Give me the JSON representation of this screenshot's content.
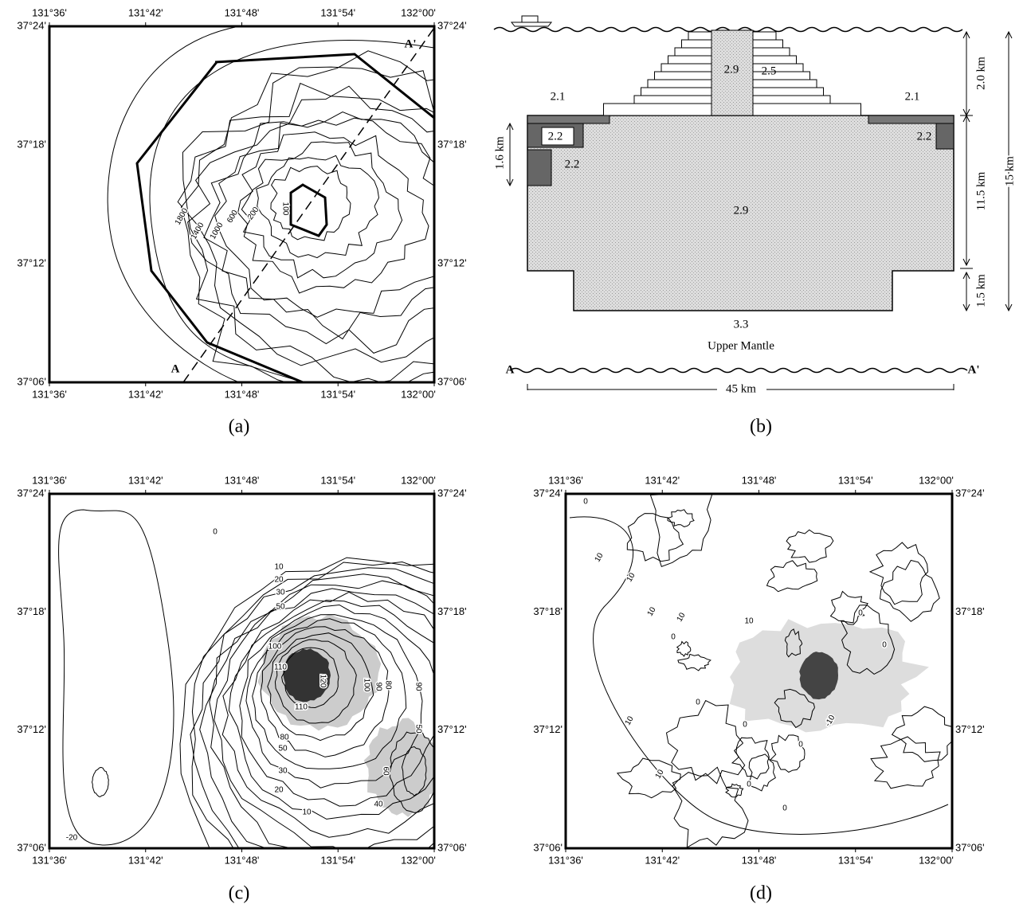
{
  "longitude_labels": [
    "131°36'",
    "131°42'",
    "131°48'",
    "131°54'",
    "132°00'"
  ],
  "latitude_labels": [
    "37°24'",
    "37°18'",
    "37°12'",
    "37°06'"
  ],
  "panels": {
    "a": {
      "caption": "(a)",
      "contour_labels": [
        "1800",
        "1400",
        "1000",
        "600",
        "200",
        "100"
      ],
      "section_labels": [
        "A",
        "A'"
      ]
    },
    "b": {
      "caption": "(b)",
      "densities": [
        "2.9",
        "2.5",
        "2.1",
        "2.1",
        "2.2",
        "2.2",
        "2.2",
        "2.9",
        "3.3"
      ],
      "layer_name": "Upper Mantle",
      "ends": [
        "A",
        "A'"
      ],
      "dimensions": [
        "2.0 km",
        "15 km",
        "11.5 km",
        "1.5 km",
        "1.6 km",
        "45 km"
      ]
    },
    "c": {
      "caption": "(c)",
      "contour_labels": [
        "0",
        "10",
        "20",
        "30",
        "50",
        "100",
        "110",
        "120",
        "100",
        "110",
        "80",
        "50",
        "30",
        "20",
        "10",
        "90",
        "80",
        "90",
        "50",
        "60",
        "40",
        "-20"
      ]
    },
    "d": {
      "caption": "(d)",
      "contour_labels": [
        "0",
        "10",
        "10",
        "10",
        "10",
        "0",
        "10",
        "0",
        "0",
        "0",
        "0",
        "0",
        "-10",
        "10",
        "10",
        "0",
        "0"
      ]
    }
  }
}
